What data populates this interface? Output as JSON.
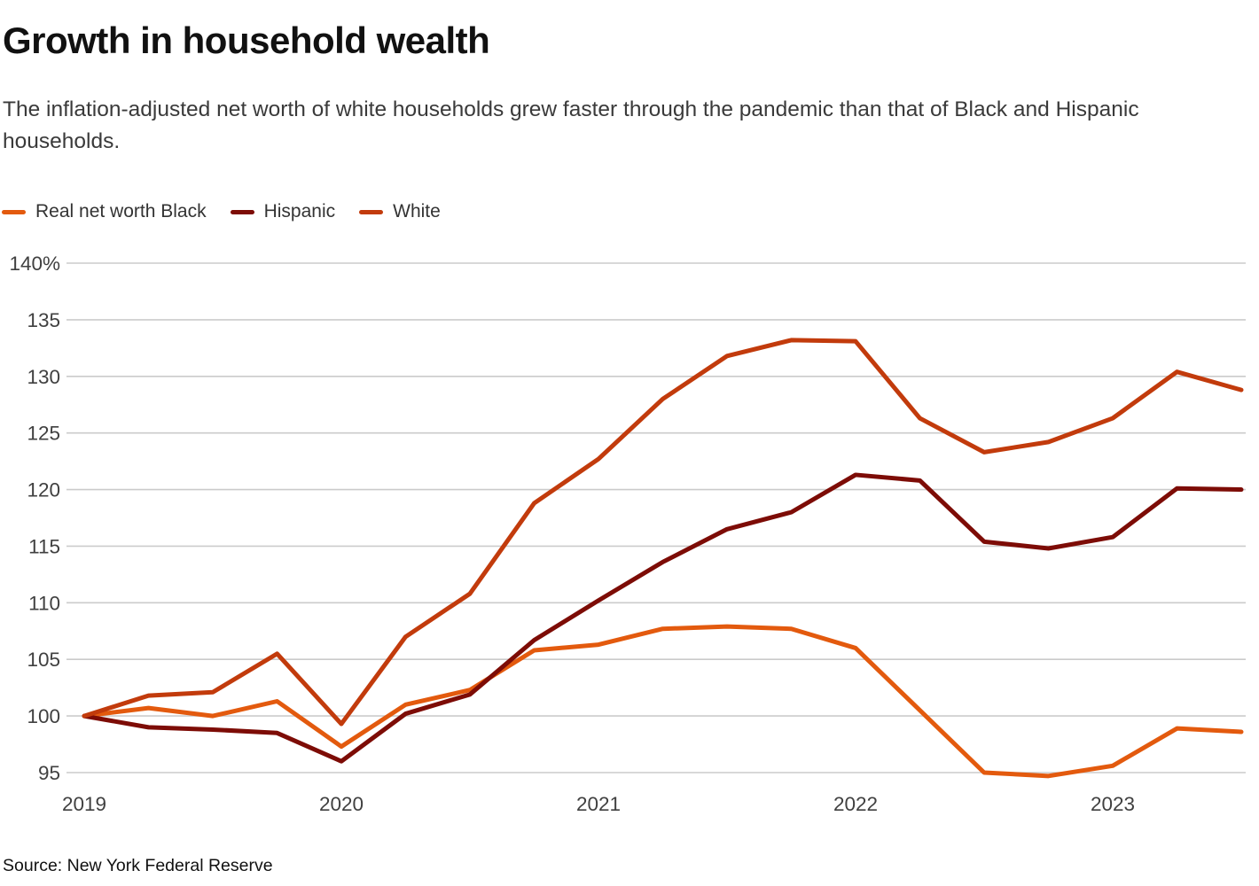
{
  "header": {
    "title": "Growth in household wealth",
    "subtitle": "The inflation-adjusted net worth of white households grew faster through the pandemic than that of Black and Hispanic households."
  },
  "legend": {
    "items": [
      {
        "label": "Real net worth Black",
        "color": "#E35A0E"
      },
      {
        "label": "Hispanic",
        "color": "#7D0C06"
      },
      {
        "label": "White",
        "color": "#C23B0C"
      }
    ]
  },
  "chart_data": {
    "type": "line",
    "title": "Growth in household wealth",
    "x_unit": "quarter",
    "categories": [
      "2019 Q1",
      "2019 Q2",
      "2019 Q3",
      "2019 Q4",
      "2020 Q1",
      "2020 Q2",
      "2020 Q3",
      "2020 Q4",
      "2021 Q1",
      "2021 Q2",
      "2021 Q3",
      "2021 Q4",
      "2022 Q1",
      "2022 Q2",
      "2022 Q3",
      "2022 Q4",
      "2023 Q1",
      "2023 Q2",
      "2023 Q3"
    ],
    "series": [
      {
        "name": "Real net worth Black",
        "color": "#E35A0E",
        "values": [
          100.0,
          100.7,
          100.0,
          101.3,
          97.3,
          101.0,
          102.3,
          105.8,
          106.3,
          107.7,
          107.9,
          107.7,
          106.0,
          100.5,
          95.0,
          94.7,
          95.6,
          98.9,
          98.6
        ]
      },
      {
        "name": "Hispanic",
        "color": "#7D0C06",
        "values": [
          100.0,
          99.0,
          98.8,
          98.5,
          96.0,
          100.2,
          101.9,
          106.7,
          110.2,
          113.6,
          116.5,
          118.0,
          121.3,
          120.8,
          115.4,
          114.8,
          115.8,
          120.1,
          120.0
        ]
      },
      {
        "name": "White",
        "color": "#C23B0C",
        "values": [
          100.0,
          101.8,
          102.1,
          105.5,
          99.3,
          107.0,
          110.8,
          118.8,
          122.7,
          128.0,
          131.8,
          133.2,
          133.1,
          126.3,
          123.3,
          124.2,
          126.3,
          130.4,
          128.8
        ]
      }
    ],
    "ylim": [
      95,
      140
    ],
    "y_ticks": [
      {
        "value": 140,
        "label": "140%"
      },
      {
        "value": 135,
        "label": "135"
      },
      {
        "value": 130,
        "label": "130"
      },
      {
        "value": 125,
        "label": "125"
      },
      {
        "value": 120,
        "label": "120"
      },
      {
        "value": 115,
        "label": "115"
      },
      {
        "value": 110,
        "label": "110"
      },
      {
        "value": 105,
        "label": "105"
      },
      {
        "value": 100,
        "label": "100"
      },
      {
        "value": 95,
        "label": "95"
      }
    ],
    "x_ticks": [
      {
        "index": 0,
        "label": "2019"
      },
      {
        "index": 4,
        "label": "2020"
      },
      {
        "index": 8,
        "label": "2021"
      },
      {
        "index": 12,
        "label": "2022"
      },
      {
        "index": 16,
        "label": "2023"
      }
    ],
    "grid": true,
    "legend_position": "top-left"
  },
  "footer": {
    "source": "Source: New York Federal Reserve"
  },
  "colors": {
    "background": "#FFFFFF",
    "grid": "#CBCBCB",
    "axis_text": "#404040",
    "title_text": "#111111",
    "subtitle_text": "#3A3A3A"
  }
}
